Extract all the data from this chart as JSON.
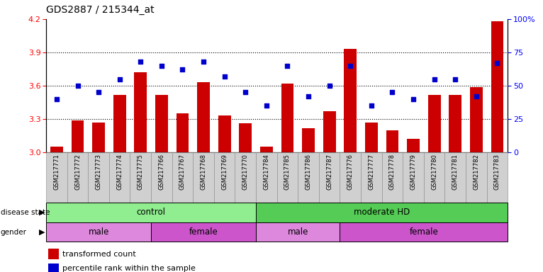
{
  "title": "GDS2887 / 215344_at",
  "samples": [
    "GSM217771",
    "GSM217772",
    "GSM217773",
    "GSM217774",
    "GSM217775",
    "GSM217766",
    "GSM217767",
    "GSM217768",
    "GSM217769",
    "GSM217770",
    "GSM217784",
    "GSM217785",
    "GSM217786",
    "GSM217787",
    "GSM217776",
    "GSM217777",
    "GSM217778",
    "GSM217779",
    "GSM217780",
    "GSM217781",
    "GSM217782",
    "GSM217783"
  ],
  "bar_values": [
    3.05,
    3.29,
    3.27,
    3.52,
    3.72,
    3.52,
    3.35,
    3.63,
    3.33,
    3.26,
    3.05,
    3.62,
    3.22,
    3.37,
    3.93,
    3.27,
    3.2,
    3.12,
    3.52,
    3.52,
    3.59,
    4.18
  ],
  "dot_values": [
    40,
    50,
    45,
    55,
    68,
    65,
    62,
    68,
    57,
    45,
    35,
    65,
    42,
    50,
    65,
    35,
    45,
    40,
    55,
    55,
    42,
    67
  ],
  "ylim_left": [
    3.0,
    4.2
  ],
  "ylim_right": [
    0,
    100
  ],
  "yticks_left": [
    3.0,
    3.3,
    3.6,
    3.9,
    4.2
  ],
  "yticks_right": [
    0,
    25,
    50,
    75,
    100
  ],
  "bar_color": "#cc0000",
  "dot_color": "#0000cc",
  "bar_width": 0.6,
  "disease_color_control": "#90ee90",
  "disease_color_moderate": "#55cc55",
  "gender_color_male": "#dd88dd",
  "gender_color_female": "#cc55cc",
  "xtick_bg": "#d0d0d0"
}
